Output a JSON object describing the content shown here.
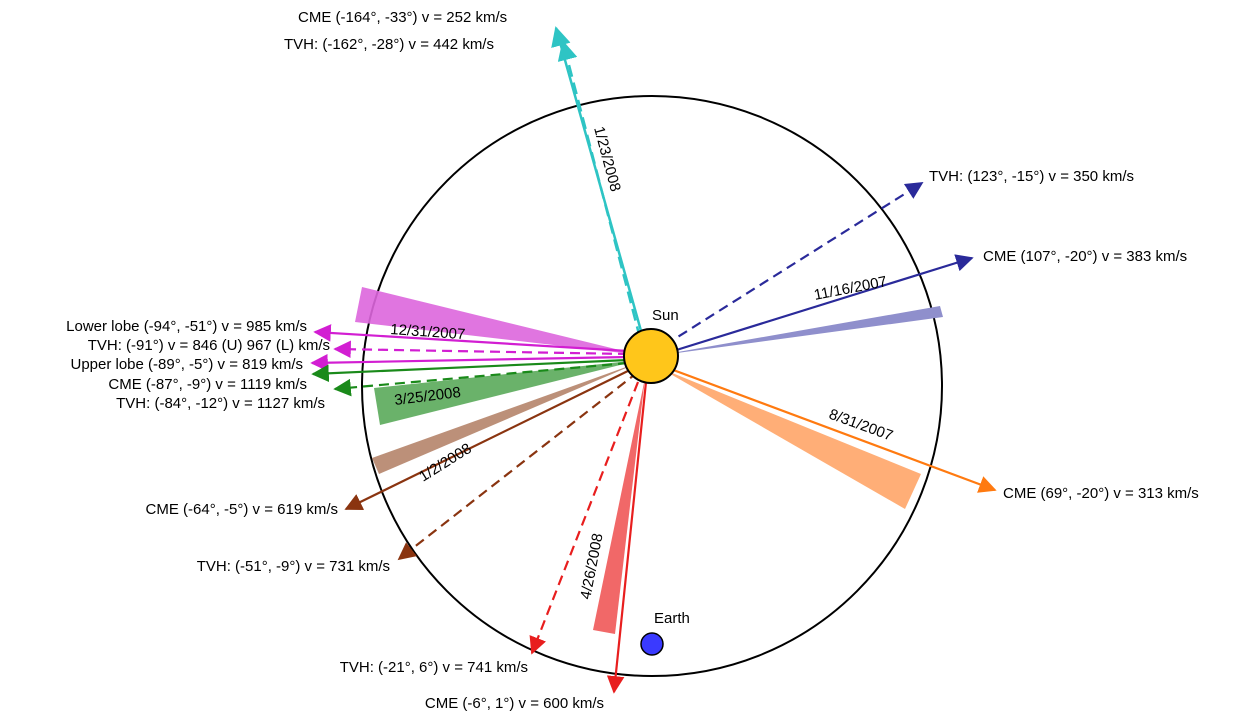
{
  "diagram": {
    "sun_label": "Sun",
    "earth_label": "Earth",
    "colors": {
      "cyan": "#2ec4c4",
      "navy": "#2a2a9a",
      "magenta": "#d21ed2",
      "green": "#1a8a1a",
      "brown": "#8a3410",
      "orange": "#ff7a10",
      "red": "#e81e1e",
      "sun": "#ffc61a",
      "earth": "#3a3aff"
    },
    "events": [
      {
        "id": "e20080123",
        "date": "1/23/2008",
        "color": "cyan",
        "wedge_color": "none",
        "labels": [
          "CME (-164°, -33°) v = 252 km/s",
          "TVH: (-162°, -28°) v = 442 km/s"
        ]
      },
      {
        "id": "e20071116",
        "date": "11/16/2007",
        "color": "navy",
        "wedge_color": "#8f8fcc",
        "labels": [
          "TVH: (123°, -15°) v = 350 km/s",
          "CME (107°, -20°) v = 383 km/s"
        ]
      },
      {
        "id": "e20071231",
        "date": "12/31/2007",
        "color": "magenta",
        "wedge_color": "#dd66dd",
        "labels": [
          "Lower lobe (-94°, -51°) v = 985 km/s",
          "TVH: (-91°) v = 846 (U) 967 (L) km/s",
          "Upper lobe (-89°, -5°) v = 819 km/s"
        ]
      },
      {
        "id": "e20080325",
        "date": "3/25/2008",
        "color": "green",
        "wedge_color": "#5aaa5a",
        "labels": [
          "CME (-87°, -9°) v = 1119 km/s",
          "TVH: (-84°, -12°) v = 1127 km/s"
        ]
      },
      {
        "id": "e20080102",
        "date": "1/2/2008",
        "color": "brown",
        "wedge_color": "#b88a72",
        "labels": [
          "CME (-64°, -5°) v = 619 km/s",
          "TVH: (-51°, -9°) v = 731 km/s"
        ]
      },
      {
        "id": "e20070831",
        "date": "8/31/2007",
        "color": "orange",
        "wedge_color": "#ffaa70",
        "labels": [
          "CME (69°, -20°) v = 313 km/s"
        ]
      },
      {
        "id": "e20080426",
        "date": "4/26/2008",
        "color": "red",
        "wedge_color": "#f06060",
        "labels": [
          "TVH: (-21°, 6°) v = 741 km/s",
          "CME (-6°, 1°) v = 600 km/s"
        ]
      }
    ]
  }
}
